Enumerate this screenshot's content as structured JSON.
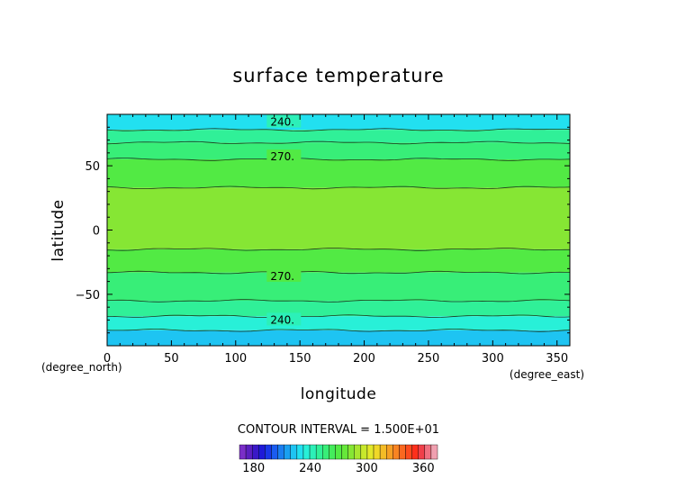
{
  "chart_data": {
    "type": "heatmap",
    "title": "surface temperature",
    "xlabel": "longitude",
    "ylabel": "latitude",
    "x_unit": "(degree_east)",
    "y_unit": "(degree_north)",
    "xlim": [
      0,
      360
    ],
    "ylim": [
      -90,
      90
    ],
    "xticks": [
      "0",
      "50",
      "100",
      "150",
      "200",
      "250",
      "300",
      "350"
    ],
    "yticks": [
      "50",
      "0",
      "−50"
    ],
    "contour_interval_text": "CONTOUR INTERVAL = 1.500E+01",
    "contour_labels": [
      {
        "text": "240.",
        "lon": 127,
        "lat": 84
      },
      {
        "text": "270.",
        "lon": 127,
        "lat": 57
      },
      {
        "text": "270.",
        "lon": 127,
        "lat": -36
      },
      {
        "text": "240.",
        "lon": 127,
        "lat": -70
      }
    ],
    "latitude_bands_K": [
      {
        "lat_from": 90,
        "lat_to": 78,
        "value": 232
      },
      {
        "lat_from": 78,
        "lat_to": 68,
        "value": 252
      },
      {
        "lat_from": 68,
        "lat_to": 55,
        "value": 262
      },
      {
        "lat_from": 55,
        "lat_to": 33,
        "value": 276
      },
      {
        "lat_from": 33,
        "lat_to": -15,
        "value": 290
      },
      {
        "lat_from": -15,
        "lat_to": -33,
        "value": 276
      },
      {
        "lat_from": -33,
        "lat_to": -55,
        "value": 262
      },
      {
        "lat_from": -55,
        "lat_to": -67,
        "value": 252
      },
      {
        "lat_from": -67,
        "lat_to": -78,
        "value": 237
      },
      {
        "lat_from": -78,
        "lat_to": -90,
        "value": 222
      }
    ],
    "colorbar": {
      "ticks": [
        "180",
        "240",
        "300",
        "360"
      ],
      "bins": [
        165,
        172,
        179,
        186,
        193,
        200,
        207,
        214,
        221,
        228,
        235,
        242,
        249,
        256,
        263,
        270,
        277,
        284,
        291,
        298,
        305,
        312,
        319,
        326,
        333,
        340,
        347,
        354,
        361,
        368,
        375
      ],
      "colors": [
        "#7a2ec8",
        "#5a1fc0",
        "#3a18c8",
        "#1f1ad8",
        "#1a37e8",
        "#1a5cf0",
        "#1a7ef0",
        "#1aa0f0",
        "#1ec4f2",
        "#22e0f0",
        "#28f0d8",
        "#2cf0b8",
        "#30f098",
        "#38ee78",
        "#44ec5c",
        "#52ea44",
        "#66e83a",
        "#86e634",
        "#a8e630",
        "#c8e82c",
        "#e2e82a",
        "#f0d828",
        "#f4bc26",
        "#f6a024",
        "#f88422",
        "#fa6820",
        "#fc4c1e",
        "#fe301c",
        "#f0404a",
        "#f07080",
        "#f0a0b0"
      ]
    }
  }
}
